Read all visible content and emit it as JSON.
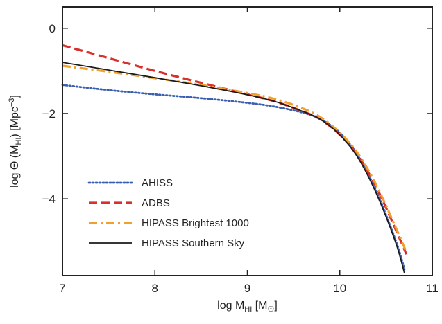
{
  "chart_data": {
    "type": "line",
    "xlabel": "log M_HI [M_☉]",
    "ylabel": "log Θ (M_HI) [Mpc⁻³]",
    "xlabel_parts": {
      "pre": "log M",
      "sub": "HI",
      "mid": " [M",
      "sub2": "☉",
      "post": "]"
    },
    "ylabel_parts": {
      "pre": "log Θ (M",
      "sub": "HI",
      "mid": ") [Mpc",
      "sup": "−3",
      "post": "]"
    },
    "xlim": [
      7,
      11
    ],
    "ylim": [
      -5.8,
      0.5
    ],
    "xticks": [
      7,
      8,
      9,
      10,
      11
    ],
    "yticks": [
      0,
      -2,
      -4
    ],
    "ytick_labels": [
      "0",
      "−2",
      "−4"
    ],
    "grid": false,
    "legend_position": "lower-left",
    "colors": {
      "AHISS": "#3a5fb0",
      "ADBS": "#d9302c",
      "HIPASS Brightest 1000": "#f0a030",
      "HIPASS Southern Sky": "#1a1a1a"
    },
    "series": [
      {
        "name": "AHISS",
        "style": "dotted",
        "x": [
          7.0,
          7.5,
          8.0,
          8.5,
          9.0,
          9.3,
          9.6,
          9.8,
          10.0,
          10.2,
          10.4,
          10.6,
          10.7
        ],
        "y": [
          -1.33,
          -1.45,
          -1.55,
          -1.64,
          -1.75,
          -1.84,
          -1.98,
          -2.14,
          -2.45,
          -3.0,
          -3.85,
          -4.95,
          -5.65
        ]
      },
      {
        "name": "ADBS",
        "style": "dashed",
        "x": [
          7.0,
          7.5,
          8.0,
          8.5,
          9.0,
          9.3,
          9.6,
          9.8,
          10.0,
          10.2,
          10.4,
          10.6,
          10.72
        ],
        "y": [
          -0.4,
          -0.7,
          -1.0,
          -1.28,
          -1.55,
          -1.72,
          -1.95,
          -2.15,
          -2.5,
          -3.0,
          -3.75,
          -4.7,
          -5.3
        ]
      },
      {
        "name": "HIPASS Brightest 1000",
        "style": "dashdot",
        "x": [
          7.0,
          7.5,
          8.0,
          8.5,
          9.0,
          9.3,
          9.6,
          9.8,
          10.0,
          10.2,
          10.4,
          10.6,
          10.72
        ],
        "y": [
          -0.88,
          -1.02,
          -1.17,
          -1.33,
          -1.52,
          -1.66,
          -1.88,
          -2.1,
          -2.45,
          -2.95,
          -3.7,
          -4.65,
          -5.25
        ]
      },
      {
        "name": "HIPASS Southern Sky",
        "style": "solid",
        "x": [
          7.0,
          7.5,
          8.0,
          8.5,
          9.0,
          9.3,
          9.6,
          9.8,
          10.0,
          10.2,
          10.4,
          10.6,
          10.7
        ],
        "y": [
          -0.8,
          -0.98,
          -1.16,
          -1.35,
          -1.56,
          -1.72,
          -1.95,
          -2.15,
          -2.5,
          -3.05,
          -3.9,
          -5.0,
          -5.75
        ]
      }
    ]
  }
}
